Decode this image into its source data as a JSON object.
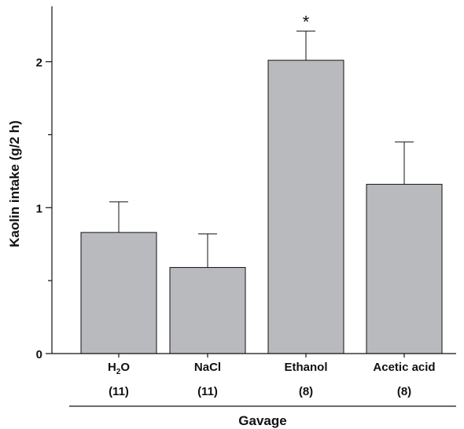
{
  "chart_data": {
    "type": "bar",
    "ylabel": "Kaolin intake (g/2 h)",
    "xlabel": "Gavage",
    "ylim": [
      0,
      2.38
    ],
    "yticks_major": [
      0,
      1,
      2
    ],
    "yticks_minor": [
      0.5,
      1.5
    ],
    "categories": [
      {
        "label_main": "H",
        "label_sub": "2",
        "label_tail": "O",
        "n_label": "(11)"
      },
      {
        "label_main": "NaCl",
        "label_sub": "",
        "label_tail": "",
        "n_label": "(11)"
      },
      {
        "label_main": "Ethanol",
        "label_sub": "",
        "label_tail": "",
        "n_label": "(8)"
      },
      {
        "label_main": "Acetic acid",
        "label_sub": "",
        "label_tail": "",
        "n_label": "(8)"
      }
    ],
    "values": [
      0.83,
      0.59,
      2.01,
      1.16
    ],
    "errors": [
      0.21,
      0.23,
      0.2,
      0.29
    ],
    "annotations": [
      {
        "category_index": 2,
        "text": "*"
      }
    ],
    "bar_color": "#b9babd",
    "grid": false
  }
}
